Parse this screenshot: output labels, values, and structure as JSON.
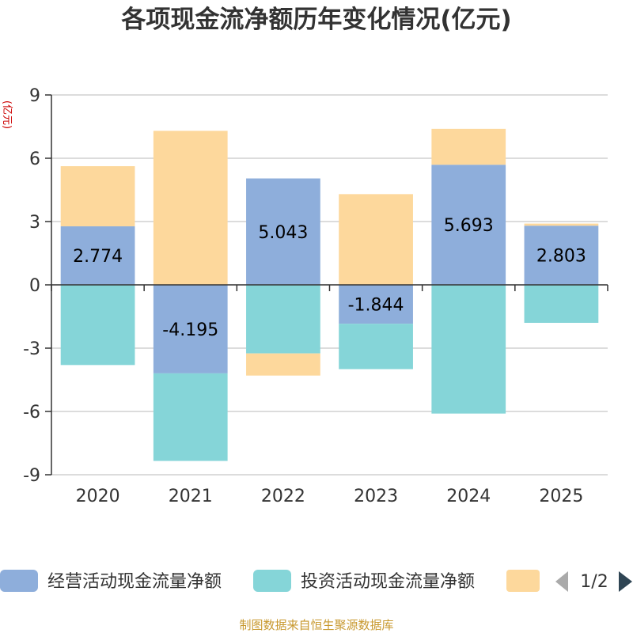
{
  "chart_data": {
    "type": "bar",
    "stacked": true,
    "title": "各项现金流净额历年变化情况(亿元)",
    "ylabel": "(亿元)",
    "xlabel": "",
    "ylim": [
      -9,
      9
    ],
    "yticks": [
      9,
      6,
      3,
      0,
      -3,
      -6,
      -9
    ],
    "categories": [
      "2020",
      "2021",
      "2022",
      "2023",
      "2024",
      "2025"
    ],
    "series": [
      {
        "name": "经营活动现金流量净额",
        "color": "#8eaedb",
        "values": [
          2.774,
          -4.195,
          5.043,
          -1.844,
          5.693,
          2.803
        ],
        "labels": [
          "2.774",
          "-4.195",
          "5.043",
          "-1.844",
          "5.693",
          "2.803"
        ]
      },
      {
        "name": "投资活动现金流量净额",
        "color": "#85d5d8",
        "values": [
          -3.8,
          -4.15,
          -3.25,
          -2.15,
          -6.1,
          -1.8
        ]
      },
      {
        "name": "",
        "color": "#fdd89c",
        "values": [
          2.85,
          7.3,
          -1.05,
          4.3,
          1.7,
          0.1
        ]
      }
    ]
  },
  "legend": {
    "items": [
      "经营活动现金流量净额",
      "投资活动现金流量净额",
      ""
    ],
    "page": "1/2"
  },
  "source": "制图数据来自恒生聚源数据库"
}
